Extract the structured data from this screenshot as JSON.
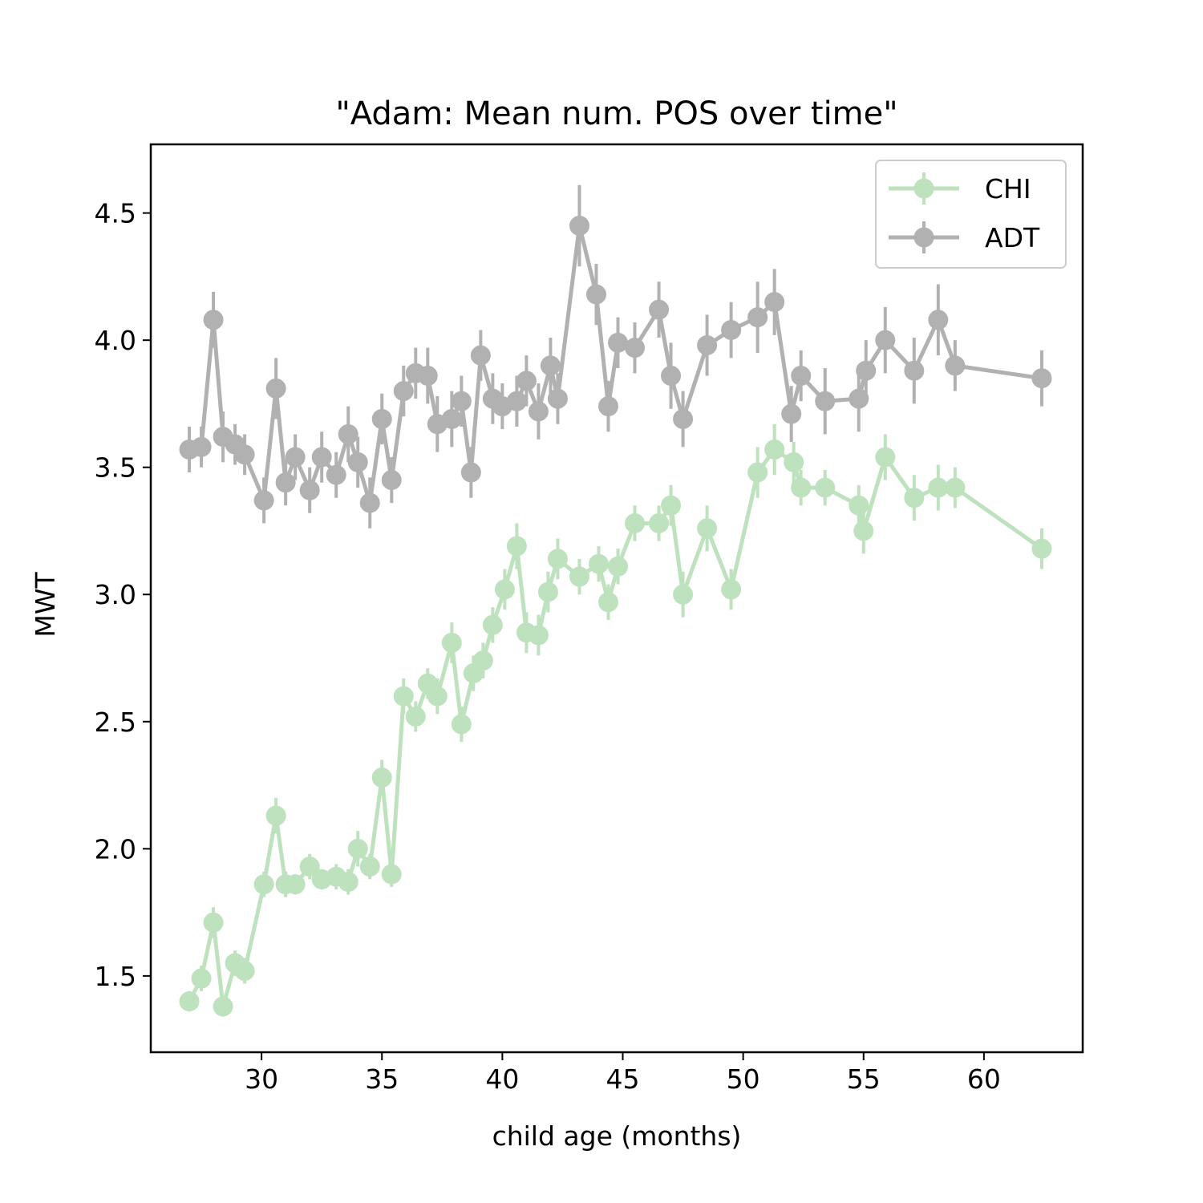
{
  "chart_data": {
    "type": "line",
    "title": "\"Adam: Mean num. POS over time\"",
    "xlabel": "child age (months)",
    "ylabel": "MWT",
    "xlim": [
      25.4,
      64.1
    ],
    "ylim": [
      1.2,
      4.77
    ],
    "xticks": [
      30,
      35,
      40,
      45,
      50,
      55,
      60
    ],
    "yticks": [
      1.5,
      2.0,
      2.5,
      3.0,
      3.5,
      4.0,
      4.5
    ],
    "xtick_labels": [
      "30",
      "35",
      "40",
      "45",
      "50",
      "55",
      "60"
    ],
    "ytick_labels": [
      "1.5",
      "2.0",
      "2.5",
      "3.0",
      "3.5",
      "4.0",
      "4.5"
    ],
    "grid": false,
    "legend": {
      "position": "top-right",
      "entries": [
        "CHI",
        "ADT"
      ]
    },
    "series": [
      {
        "name": "CHI",
        "color": "#2ca02c",
        "x": [
          27.0,
          27.5,
          28.0,
          28.4,
          28.9,
          29.3,
          30.1,
          30.6,
          31.0,
          31.4,
          32.0,
          32.5,
          33.1,
          33.6,
          34.0,
          34.5,
          35.0,
          35.4,
          35.9,
          36.4,
          36.9,
          37.3,
          37.9,
          38.3,
          38.8,
          39.2,
          39.6,
          40.1,
          40.6,
          41.0,
          41.5,
          41.9,
          42.3,
          43.2,
          44.0,
          44.4,
          44.8,
          45.5,
          46.5,
          47.0,
          47.5,
          48.5,
          49.5,
          50.6,
          51.3,
          52.1,
          52.4,
          53.4,
          54.8,
          55.0,
          55.9,
          57.1,
          58.1,
          58.8,
          62.4
        ],
        "y": [
          1.4,
          1.49,
          1.71,
          1.38,
          1.55,
          1.52,
          1.86,
          2.13,
          1.86,
          1.86,
          1.93,
          1.88,
          1.89,
          1.87,
          2.0,
          1.93,
          2.28,
          1.9,
          2.6,
          2.52,
          2.65,
          2.6,
          2.81,
          2.49,
          2.69,
          2.74,
          2.88,
          3.02,
          3.19,
          2.85,
          2.84,
          3.01,
          3.14,
          3.07,
          3.12,
          2.97,
          3.11,
          3.28,
          3.28,
          3.35,
          3.0,
          3.26,
          3.02,
          3.48,
          3.57,
          3.52,
          3.42,
          3.42,
          3.35,
          3.25,
          3.54,
          3.38,
          3.42,
          3.42,
          3.18
        ],
        "yerr": [
          0.04,
          0.05,
          0.06,
          0.04,
          0.05,
          0.05,
          0.05,
          0.07,
          0.05,
          0.04,
          0.05,
          0.04,
          0.05,
          0.05,
          0.07,
          0.05,
          0.07,
          0.05,
          0.07,
          0.06,
          0.06,
          0.07,
          0.08,
          0.07,
          0.07,
          0.07,
          0.07,
          0.08,
          0.09,
          0.08,
          0.08,
          0.08,
          0.08,
          0.07,
          0.07,
          0.07,
          0.07,
          0.07,
          0.07,
          0.08,
          0.09,
          0.09,
          0.08,
          0.1,
          0.1,
          0.08,
          0.07,
          0.07,
          0.08,
          0.09,
          0.09,
          0.09,
          0.09,
          0.08,
          0.08
        ]
      },
      {
        "name": "ADT",
        "color": "#000000",
        "x": [
          27.0,
          27.5,
          28.0,
          28.4,
          28.9,
          29.3,
          30.1,
          30.6,
          31.0,
          31.4,
          32.0,
          32.5,
          33.1,
          33.6,
          34.0,
          34.5,
          35.0,
          35.4,
          35.9,
          36.4,
          36.9,
          37.3,
          37.9,
          38.3,
          38.7,
          39.1,
          39.6,
          40.0,
          40.6,
          41.0,
          41.5,
          42.0,
          42.3,
          43.2,
          43.9,
          44.4,
          44.8,
          45.5,
          46.5,
          47.0,
          47.5,
          48.5,
          49.5,
          50.6,
          51.3,
          52.0,
          52.4,
          53.4,
          54.8,
          55.1,
          55.9,
          57.1,
          58.1,
          58.8,
          62.4
        ],
        "y": [
          3.57,
          3.58,
          4.08,
          3.62,
          3.59,
          3.55,
          3.37,
          3.81,
          3.44,
          3.54,
          3.41,
          3.54,
          3.47,
          3.63,
          3.52,
          3.36,
          3.69,
          3.45,
          3.8,
          3.87,
          3.86,
          3.67,
          3.69,
          3.76,
          3.48,
          3.94,
          3.77,
          3.74,
          3.76,
          3.84,
          3.72,
          3.9,
          3.77,
          4.45,
          4.18,
          3.74,
          3.99,
          3.97,
          4.12,
          3.86,
          3.69,
          3.98,
          4.04,
          4.09,
          4.15,
          3.71,
          3.86,
          3.76,
          3.77,
          3.88,
          4.0,
          3.88,
          4.08,
          3.9,
          3.85
        ],
        "yerr": [
          0.09,
          0.08,
          0.11,
          0.1,
          0.08,
          0.08,
          0.09,
          0.12,
          0.09,
          0.09,
          0.09,
          0.1,
          0.09,
          0.11,
          0.1,
          0.1,
          0.1,
          0.09,
          0.1,
          0.1,
          0.11,
          0.11,
          0.11,
          0.1,
          0.1,
          0.1,
          0.1,
          0.09,
          0.1,
          0.1,
          0.11,
          0.11,
          0.1,
          0.16,
          0.12,
          0.1,
          0.1,
          0.1,
          0.11,
          0.13,
          0.11,
          0.12,
          0.11,
          0.14,
          0.13,
          0.11,
          0.1,
          0.13,
          0.13,
          0.12,
          0.13,
          0.13,
          0.14,
          0.1,
          0.11
        ]
      }
    ]
  }
}
